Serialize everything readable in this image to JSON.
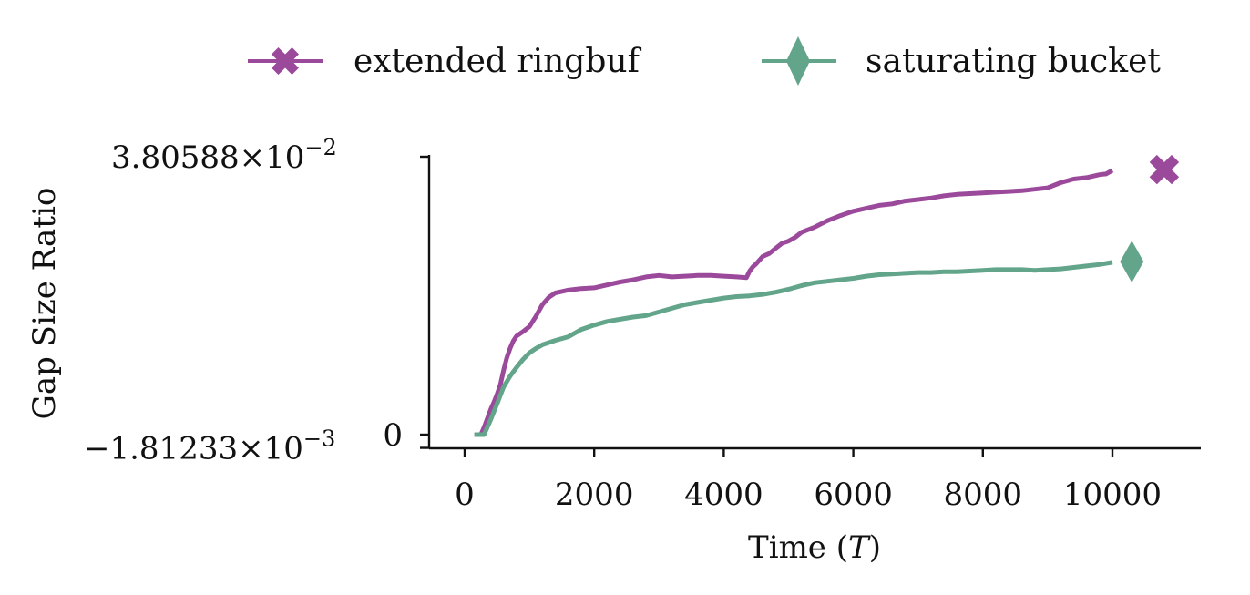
{
  "chart_data": {
    "type": "line",
    "xlabel": "Time (",
    "xlabel_var": "T",
    "xlabel_close": ")",
    "ylabel": "Gap Size Ratio",
    "xlim": [
      -500,
      11300
    ],
    "ylim": [
      -0.00181233,
      0.0380588
    ],
    "x_ticks": [
      {
        "value": 0,
        "label": "0"
      },
      {
        "value": 2000,
        "label": "2000"
      },
      {
        "value": 4000,
        "label": "4000"
      },
      {
        "value": 6000,
        "label": "6000"
      },
      {
        "value": 8000,
        "label": "8000"
      },
      {
        "value": 10000,
        "label": "10000"
      }
    ],
    "y_ticks": [
      {
        "value": 0.0380588,
        "mantissa": "3.80588",
        "times": "×",
        "base": "10",
        "exponent": "−2"
      },
      {
        "value": -0.00181233,
        "mantissa": "−1.81233",
        "times": "×",
        "base": "10",
        "exponent": "−3"
      },
      {
        "value": 0,
        "label": "0"
      }
    ],
    "legend_position": "top-center",
    "grid": false,
    "series": [
      {
        "name": "extended ringbuf",
        "color": "#9b4a9b",
        "marker": "x",
        "end_marker": {
          "x": 10800,
          "y": 0.0363
        },
        "x": [
          150,
          250,
          300,
          350,
          400,
          450,
          500,
          550,
          600,
          650,
          700,
          750,
          800,
          900,
          1000,
          1100,
          1200,
          1300,
          1400,
          1500,
          1600,
          1800,
          2000,
          2200,
          2400,
          2600,
          2800,
          3000,
          3200,
          3400,
          3600,
          3800,
          4000,
          4200,
          4350,
          4400,
          4450,
          4500,
          4600,
          4700,
          4800,
          4900,
          5000,
          5100,
          5200,
          5400,
          5600,
          5800,
          6000,
          6200,
          6400,
          6600,
          6800,
          7000,
          7200,
          7400,
          7600,
          7800,
          8000,
          8200,
          8400,
          8600,
          8800,
          9000,
          9200,
          9400,
          9600,
          9800,
          9900,
          10000
        ],
        "y": [
          0.0,
          0.0,
          0.001,
          0.0022,
          0.0034,
          0.0044,
          0.0055,
          0.0068,
          0.0088,
          0.0105,
          0.0118,
          0.0128,
          0.0135,
          0.0141,
          0.0148,
          0.0162,
          0.0178,
          0.0188,
          0.0194,
          0.0196,
          0.0198,
          0.02,
          0.0201,
          0.0205,
          0.0209,
          0.0212,
          0.0216,
          0.0218,
          0.0216,
          0.0217,
          0.0218,
          0.0218,
          0.0217,
          0.0216,
          0.0215,
          0.0224,
          0.023,
          0.0234,
          0.0244,
          0.0248,
          0.0255,
          0.0262,
          0.0265,
          0.027,
          0.0277,
          0.0284,
          0.0293,
          0.03,
          0.0306,
          0.031,
          0.0314,
          0.0316,
          0.032,
          0.0322,
          0.0324,
          0.0327,
          0.0329,
          0.033,
          0.0331,
          0.0332,
          0.0333,
          0.0334,
          0.0336,
          0.0338,
          0.0345,
          0.035,
          0.0352,
          0.0356,
          0.0357,
          0.0362
        ]
      },
      {
        "name": "saturating bucket",
        "color": "#62a58a",
        "marker": "d",
        "end_marker": {
          "x": 10300,
          "y": 0.0237
        },
        "x": [
          150,
          250,
          300,
          400,
          500,
          600,
          700,
          800,
          900,
          1000,
          1100,
          1200,
          1400,
          1600,
          1800,
          2000,
          2200,
          2400,
          2600,
          2800,
          3000,
          3200,
          3400,
          3600,
          3800,
          4000,
          4200,
          4400,
          4600,
          4800,
          5000,
          5200,
          5400,
          5600,
          5800,
          6000,
          6200,
          6400,
          6600,
          6800,
          7000,
          7200,
          7400,
          7600,
          7800,
          8000,
          8200,
          8400,
          8600,
          8800,
          9000,
          9200,
          9400,
          9600,
          9800,
          10000
        ],
        "y": [
          0.0,
          0.0,
          0.0,
          0.002,
          0.0042,
          0.0065,
          0.008,
          0.0092,
          0.0103,
          0.0112,
          0.0118,
          0.0123,
          0.0129,
          0.0134,
          0.0144,
          0.015,
          0.0155,
          0.0158,
          0.0161,
          0.0163,
          0.0168,
          0.0173,
          0.0178,
          0.0181,
          0.0184,
          0.0187,
          0.0189,
          0.019,
          0.0192,
          0.0195,
          0.0199,
          0.0204,
          0.0208,
          0.021,
          0.0212,
          0.0214,
          0.0217,
          0.0219,
          0.022,
          0.0221,
          0.0222,
          0.0222,
          0.0223,
          0.0223,
          0.0224,
          0.0225,
          0.0226,
          0.0226,
          0.0226,
          0.0225,
          0.0226,
          0.0227,
          0.0229,
          0.0231,
          0.0233,
          0.0236
        ]
      }
    ]
  }
}
